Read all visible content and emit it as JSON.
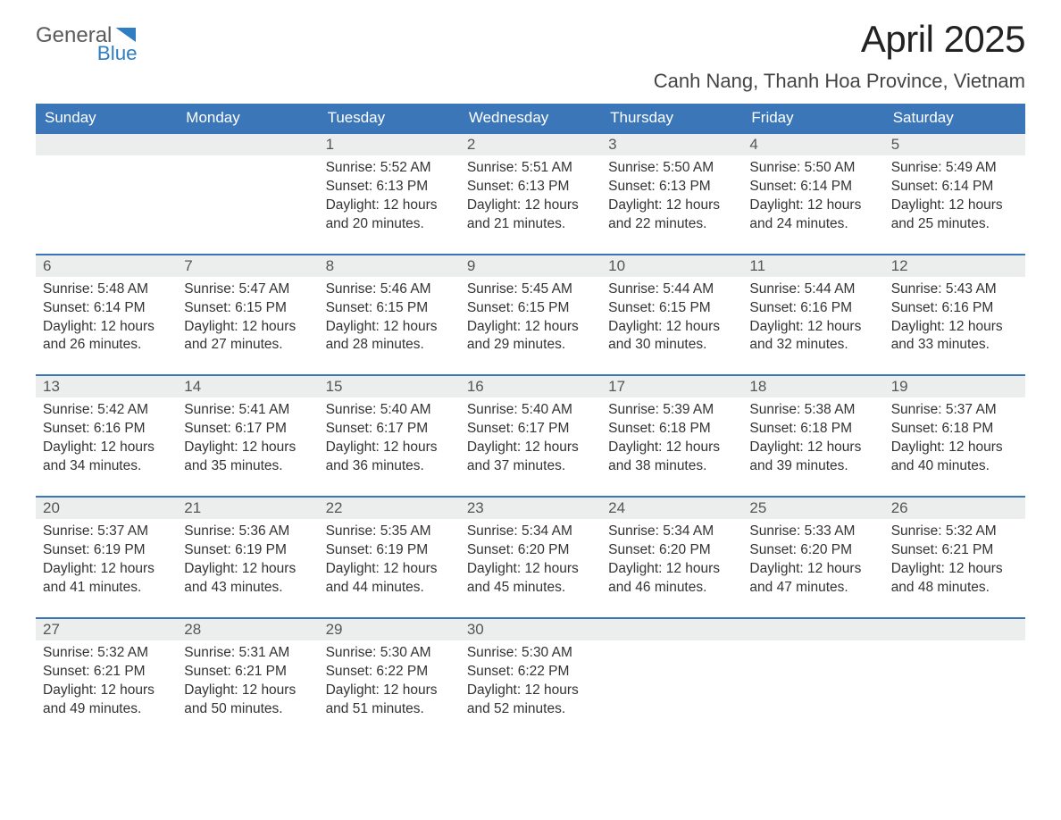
{
  "brand": {
    "word1": "General",
    "word2": "Blue",
    "color1": "#5a5a5a",
    "color2": "#2f7ec2"
  },
  "title": "April 2025",
  "location": "Canh Nang, Thanh Hoa Province, Vietnam",
  "colors": {
    "header_bg": "#3b77b8",
    "header_text": "#ffffff",
    "daynum_bg": "#eceeee",
    "daynum_text": "#555555",
    "body_text": "#333333",
    "row_border": "#3b77b8",
    "page_bg": "#ffffff"
  },
  "typography": {
    "title_fontsize": 42,
    "location_fontsize": 22,
    "weekday_fontsize": 17,
    "daynum_fontsize": 17,
    "cell_fontsize": 15.5
  },
  "weekdays": [
    "Sunday",
    "Monday",
    "Tuesday",
    "Wednesday",
    "Thursday",
    "Friday",
    "Saturday"
  ],
  "weeks": [
    [
      null,
      null,
      {
        "n": "1",
        "sr": "5:52 AM",
        "ss": "6:13 PM",
        "dl": "12 hours and 20 minutes."
      },
      {
        "n": "2",
        "sr": "5:51 AM",
        "ss": "6:13 PM",
        "dl": "12 hours and 21 minutes."
      },
      {
        "n": "3",
        "sr": "5:50 AM",
        "ss": "6:13 PM",
        "dl": "12 hours and 22 minutes."
      },
      {
        "n": "4",
        "sr": "5:50 AM",
        "ss": "6:14 PM",
        "dl": "12 hours and 24 minutes."
      },
      {
        "n": "5",
        "sr": "5:49 AM",
        "ss": "6:14 PM",
        "dl": "12 hours and 25 minutes."
      }
    ],
    [
      {
        "n": "6",
        "sr": "5:48 AM",
        "ss": "6:14 PM",
        "dl": "12 hours and 26 minutes."
      },
      {
        "n": "7",
        "sr": "5:47 AM",
        "ss": "6:15 PM",
        "dl": "12 hours and 27 minutes."
      },
      {
        "n": "8",
        "sr": "5:46 AM",
        "ss": "6:15 PM",
        "dl": "12 hours and 28 minutes."
      },
      {
        "n": "9",
        "sr": "5:45 AM",
        "ss": "6:15 PM",
        "dl": "12 hours and 29 minutes."
      },
      {
        "n": "10",
        "sr": "5:44 AM",
        "ss": "6:15 PM",
        "dl": "12 hours and 30 minutes."
      },
      {
        "n": "11",
        "sr": "5:44 AM",
        "ss": "6:16 PM",
        "dl": "12 hours and 32 minutes."
      },
      {
        "n": "12",
        "sr": "5:43 AM",
        "ss": "6:16 PM",
        "dl": "12 hours and 33 minutes."
      }
    ],
    [
      {
        "n": "13",
        "sr": "5:42 AM",
        "ss": "6:16 PM",
        "dl": "12 hours and 34 minutes."
      },
      {
        "n": "14",
        "sr": "5:41 AM",
        "ss": "6:17 PM",
        "dl": "12 hours and 35 minutes."
      },
      {
        "n": "15",
        "sr": "5:40 AM",
        "ss": "6:17 PM",
        "dl": "12 hours and 36 minutes."
      },
      {
        "n": "16",
        "sr": "5:40 AM",
        "ss": "6:17 PM",
        "dl": "12 hours and 37 minutes."
      },
      {
        "n": "17",
        "sr": "5:39 AM",
        "ss": "6:18 PM",
        "dl": "12 hours and 38 minutes."
      },
      {
        "n": "18",
        "sr": "5:38 AM",
        "ss": "6:18 PM",
        "dl": "12 hours and 39 minutes."
      },
      {
        "n": "19",
        "sr": "5:37 AM",
        "ss": "6:18 PM",
        "dl": "12 hours and 40 minutes."
      }
    ],
    [
      {
        "n": "20",
        "sr": "5:37 AM",
        "ss": "6:19 PM",
        "dl": "12 hours and 41 minutes."
      },
      {
        "n": "21",
        "sr": "5:36 AM",
        "ss": "6:19 PM",
        "dl": "12 hours and 43 minutes."
      },
      {
        "n": "22",
        "sr": "5:35 AM",
        "ss": "6:19 PM",
        "dl": "12 hours and 44 minutes."
      },
      {
        "n": "23",
        "sr": "5:34 AM",
        "ss": "6:20 PM",
        "dl": "12 hours and 45 minutes."
      },
      {
        "n": "24",
        "sr": "5:34 AM",
        "ss": "6:20 PM",
        "dl": "12 hours and 46 minutes."
      },
      {
        "n": "25",
        "sr": "5:33 AM",
        "ss": "6:20 PM",
        "dl": "12 hours and 47 minutes."
      },
      {
        "n": "26",
        "sr": "5:32 AM",
        "ss": "6:21 PM",
        "dl": "12 hours and 48 minutes."
      }
    ],
    [
      {
        "n": "27",
        "sr": "5:32 AM",
        "ss": "6:21 PM",
        "dl": "12 hours and 49 minutes."
      },
      {
        "n": "28",
        "sr": "5:31 AM",
        "ss": "6:21 PM",
        "dl": "12 hours and 50 minutes."
      },
      {
        "n": "29",
        "sr": "5:30 AM",
        "ss": "6:22 PM",
        "dl": "12 hours and 51 minutes."
      },
      {
        "n": "30",
        "sr": "5:30 AM",
        "ss": "6:22 PM",
        "dl": "12 hours and 52 minutes."
      },
      null,
      null,
      null
    ]
  ],
  "labels": {
    "sunrise": "Sunrise: ",
    "sunset": "Sunset: ",
    "daylight": "Daylight: "
  }
}
